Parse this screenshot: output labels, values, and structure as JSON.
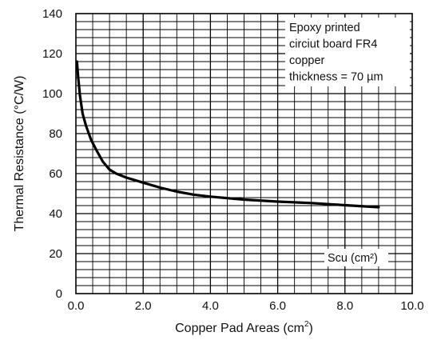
{
  "chart_data": {
    "type": "line",
    "xlabel": "Copper Pad Areas (cm",
    "xlabel_sup": "2",
    "xlabel_close": ")",
    "ylabel": "Thermal Resistance (°C/W)",
    "xlim": [
      0,
      10
    ],
    "ylim": [
      0,
      140
    ],
    "x_ticks": [
      "0.0",
      "2.0",
      "4.0",
      "6.0",
      "8.0",
      "10.0"
    ],
    "x_tick_values": [
      0,
      2,
      4,
      6,
      8,
      10
    ],
    "y_ticks": [
      "0",
      "20",
      "40",
      "60",
      "80",
      "100",
      "120",
      "140"
    ],
    "y_tick_values": [
      0,
      20,
      40,
      60,
      80,
      100,
      120,
      140
    ],
    "grid": true,
    "annotation_lines": [
      "Epoxy printed",
      "circiut board FR4",
      "copper",
      "thickness = 70 µm"
    ],
    "inline_label": "Scu (cm²)",
    "series": [
      {
        "x": [
          0.03,
          0.07,
          0.12,
          0.2,
          0.3,
          0.45,
          0.6,
          0.8,
          1.0,
          1.2,
          1.5,
          2.0,
          2.5,
          3.0,
          3.5,
          4.0,
          5.0,
          6.0,
          7.0,
          8.0,
          9.0
        ],
        "y": [
          116,
          108,
          99,
          90,
          84,
          77,
          72,
          66,
          62,
          60,
          58,
          55.5,
          53,
          51,
          49.5,
          48.5,
          47,
          46,
          45.3,
          44.2,
          43.2
        ]
      }
    ]
  }
}
